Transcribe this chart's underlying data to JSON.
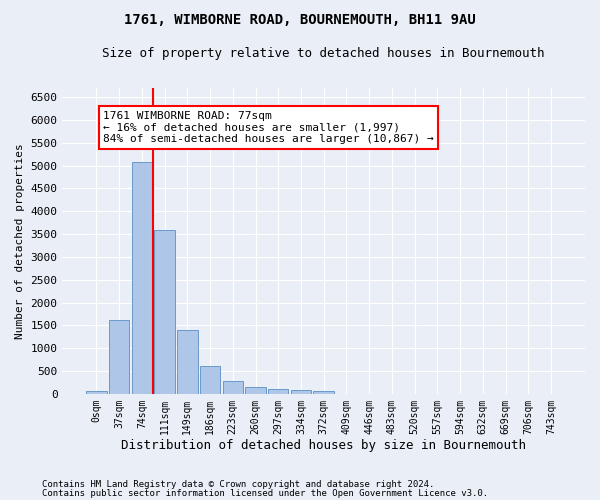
{
  "title1": "1761, WIMBORNE ROAD, BOURNEMOUTH, BH11 9AU",
  "title2": "Size of property relative to detached houses in Bournemouth",
  "xlabel": "Distribution of detached houses by size in Bournemouth",
  "ylabel": "Number of detached properties",
  "footnote1": "Contains HM Land Registry data © Crown copyright and database right 2024.",
  "footnote2": "Contains public sector information licensed under the Open Government Licence v3.0.",
  "bar_labels": [
    "0sqm",
    "37sqm",
    "74sqm",
    "111sqm",
    "149sqm",
    "186sqm",
    "223sqm",
    "260sqm",
    "297sqm",
    "334sqm",
    "372sqm",
    "409sqm",
    "446sqm",
    "483sqm",
    "520sqm",
    "557sqm",
    "594sqm",
    "632sqm",
    "669sqm",
    "706sqm",
    "743sqm"
  ],
  "bar_values": [
    55,
    1620,
    5080,
    3580,
    1390,
    620,
    280,
    155,
    115,
    75,
    55,
    0,
    0,
    0,
    0,
    0,
    0,
    0,
    0,
    0,
    0
  ],
  "bar_color": "#aec6e8",
  "bar_edge_color": "#5a8fc2",
  "vline_x_idx": 2,
  "vline_color": "red",
  "annotation_text": "1761 WIMBORNE ROAD: 77sqm\n← 16% of detached houses are smaller (1,997)\n84% of semi-detached houses are larger (10,867) →",
  "annotation_box_color": "white",
  "annotation_box_edge": "red",
  "ylim": [
    0,
    6700
  ],
  "yticks": [
    0,
    500,
    1000,
    1500,
    2000,
    2500,
    3000,
    3500,
    4000,
    4500,
    5000,
    5500,
    6000,
    6500
  ],
  "bg_color": "#eaeff7",
  "plot_bg_color": "#eaeff7",
  "grid_color": "white",
  "title_fontsize": 10,
  "subtitle_fontsize": 9
}
